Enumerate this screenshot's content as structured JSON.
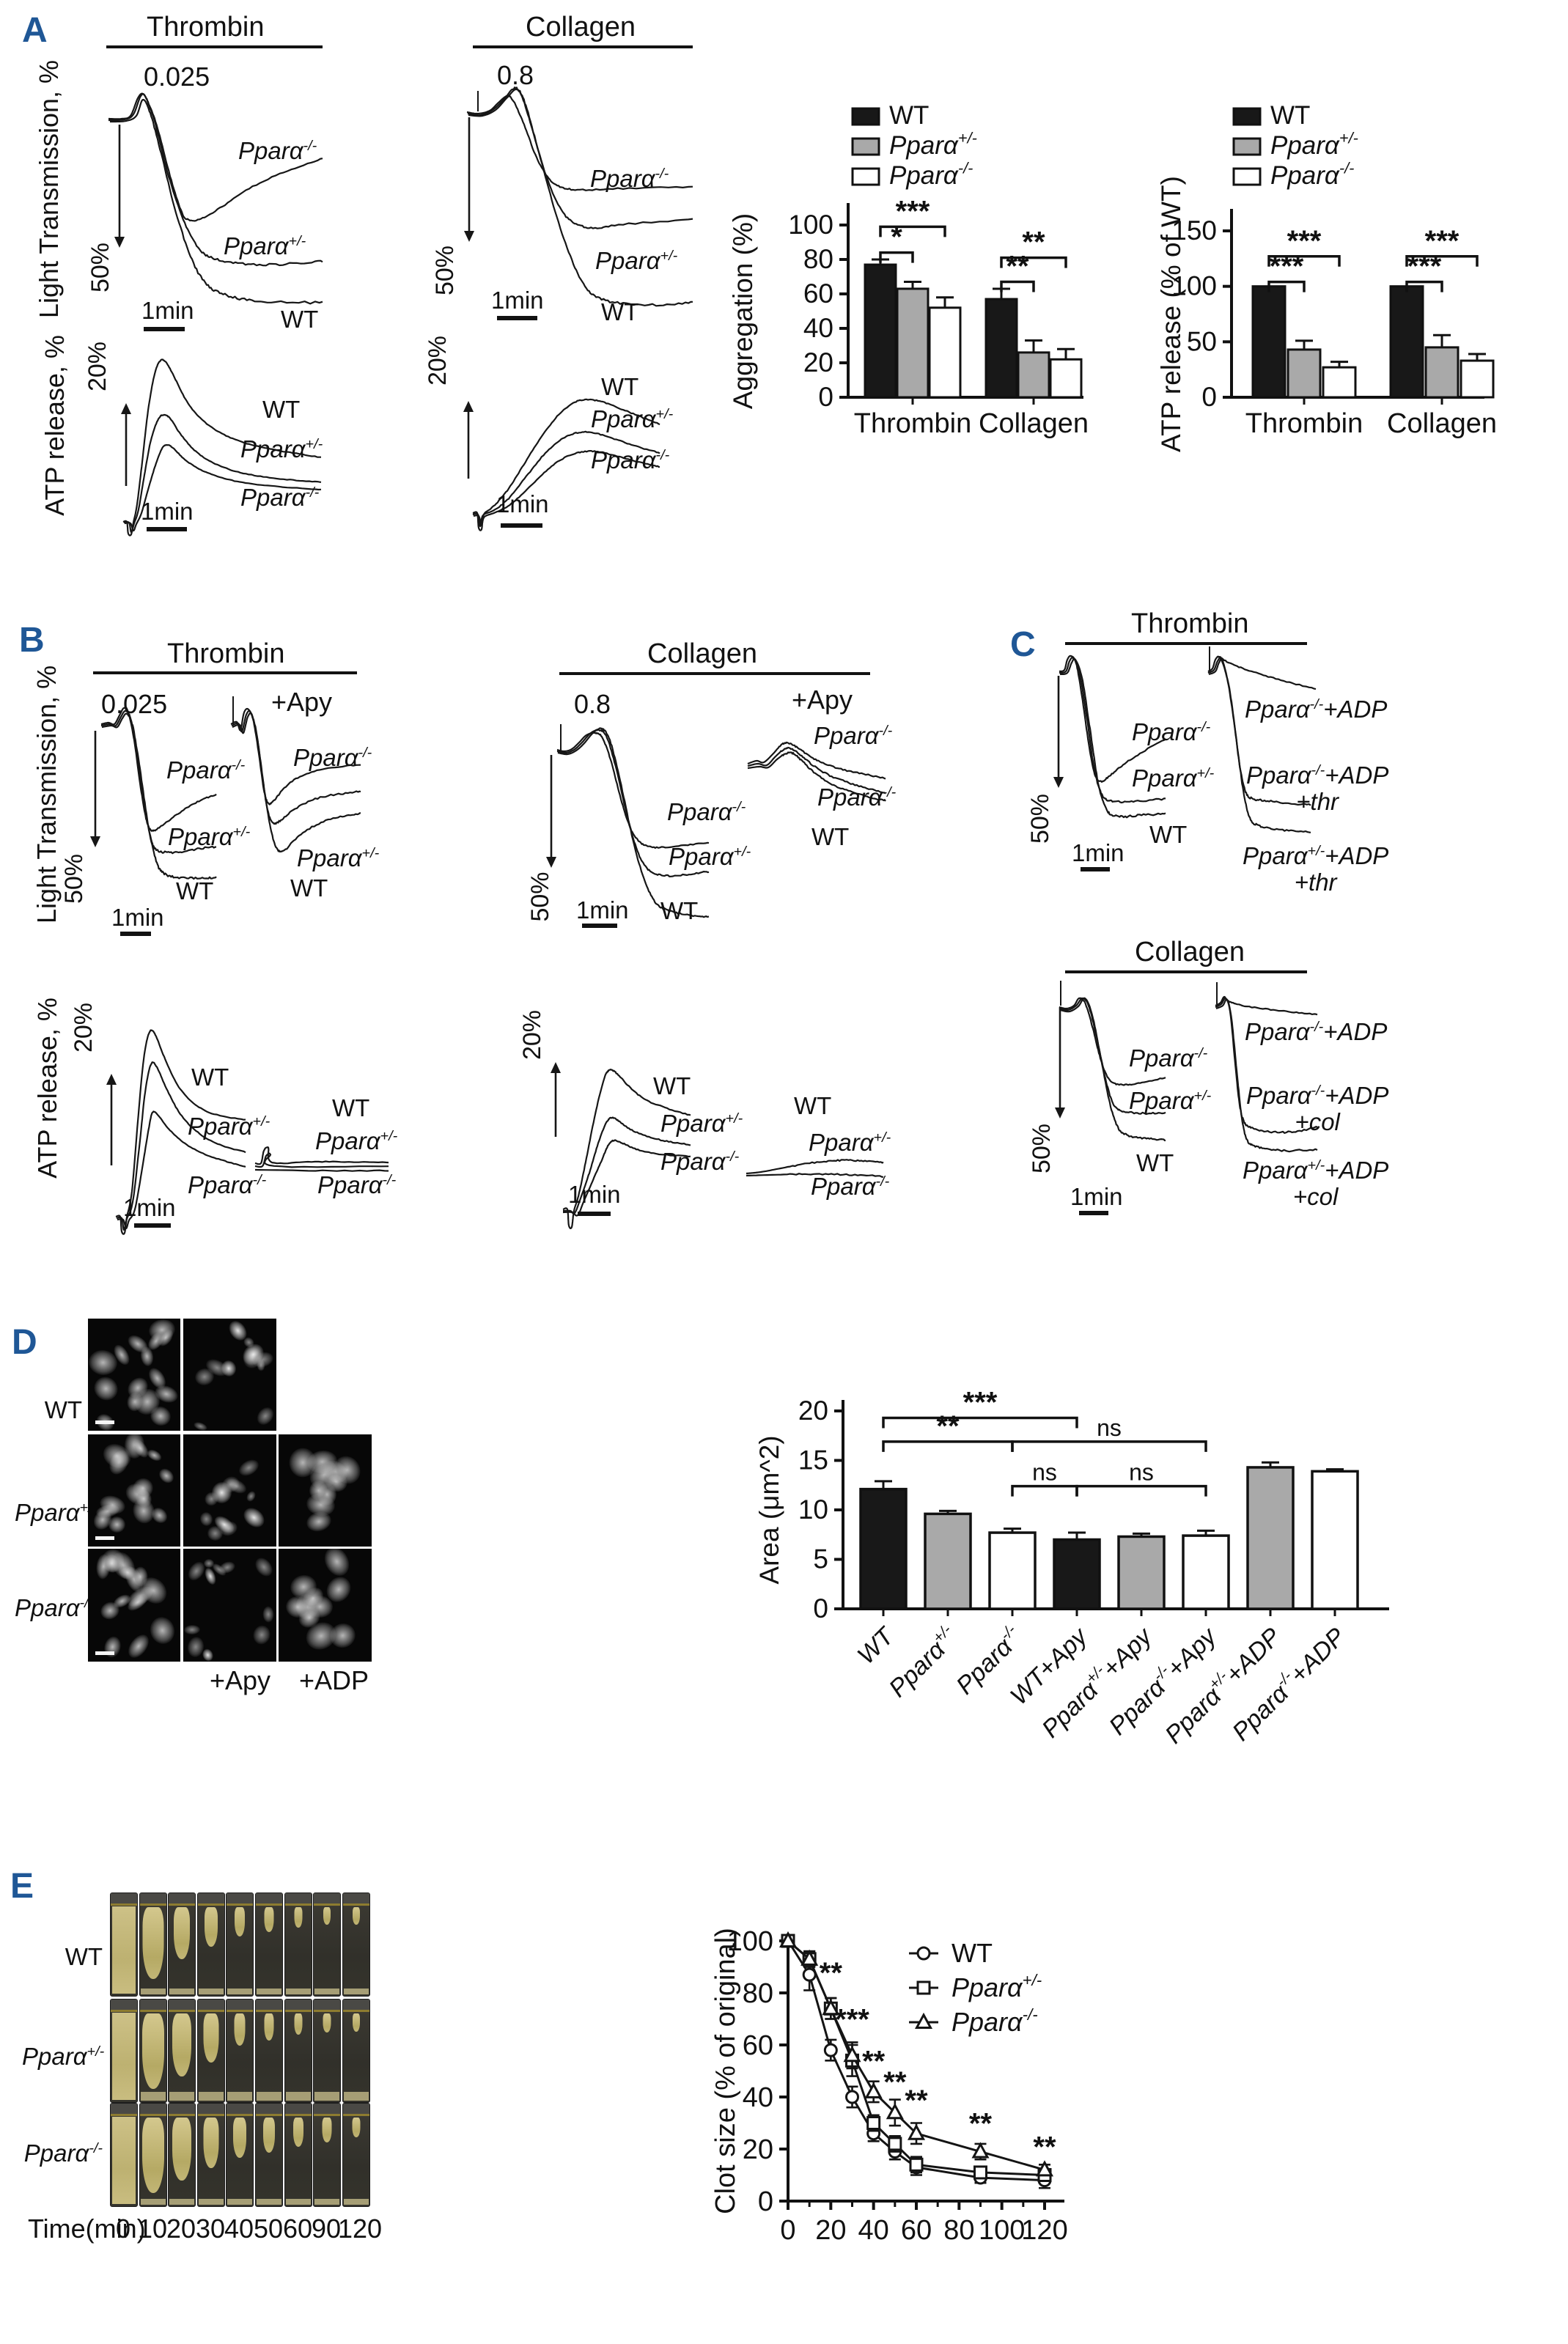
{
  "figure": {
    "panel_letter_color": "#1f5796"
  },
  "panelA": {
    "letter": "A",
    "agg_thrombin": {
      "title": "Thrombin",
      "dose": "0.025",
      "y_axis": "Light Transmission, %",
      "scale": "50%",
      "time_scale": "1min",
      "trace_labels": [
        "Pparα^{-/-}",
        "Pparα^{+/-}",
        "WT"
      ]
    },
    "agg_collagen": {
      "title": "Collagen",
      "dose": "0.8",
      "scale": "50%",
      "time_scale": "1min",
      "trace_labels": [
        "Pparα^{-/-}",
        "Pparα^{+/-}",
        "WT"
      ]
    },
    "atp_thrombin": {
      "y_axis": "ATP release, %",
      "scale": "20%",
      "time_scale": "1min",
      "trace_labels": [
        "WT",
        "Pparα^{+/-}",
        "Pparα^{-/-}"
      ]
    },
    "atp_collagen": {
      "scale": "20%",
      "time_scale": "1min",
      "trace_labels": [
        "WT",
        "Pparα^{+/-}",
        "Pparα^{-/-}"
      ]
    }
  },
  "panelB": {
    "letter": "B",
    "y_axis_top": "Light Transmission, %",
    "y_axis_bottom": "ATP release, %",
    "thrombin": {
      "title": "Thrombin",
      "dose": "0.025",
      "treatment": "+Apy",
      "scale": "50%",
      "time_scale": "1min",
      "left_labels": [
        "Pparα^{-/-}",
        "Pparα^{+/-}",
        "WT"
      ],
      "right_labels": [
        "Pparα^{-/-}",
        "Pparα^{+/-}",
        "WT"
      ]
    },
    "collagen": {
      "title": "Collagen",
      "dose": "0.8",
      "treatment": "+Apy",
      "scale": "50%",
      "time_scale": "1min",
      "left_labels": [
        "Pparα^{-/-}",
        "Pparα^{+/-}",
        "WT"
      ],
      "right_labels": [
        "Pparα^{-/-}",
        "Pparα^{-/-}",
        "WT"
      ]
    },
    "atp_thrombin": {
      "scale": "20%",
      "time_scale": "1min",
      "left_labels": [
        "WT",
        "Pparα^{+/-}",
        "Pparα^{-/-}"
      ],
      "right_labels": [
        "WT",
        "Pparα^{+/-}",
        "Pparα^{-/-}"
      ]
    },
    "atp_collagen": {
      "scale": "20%",
      "time_scale": "1min",
      "left_labels": [
        "WT",
        "Pparα^{+/-}",
        "Pparα^{-/-}"
      ],
      "right_labels": [
        "WT",
        "Pparα^{+/-}",
        "Pparα^{-/-}"
      ]
    }
  },
  "panelC": {
    "letter": "C",
    "thrombin": {
      "title": "Thrombin",
      "scale": "50%",
      "time_scale": "1min",
      "left_labels": [
        "Pparα^{-/-}",
        "Pparα^{+/-}",
        "WT"
      ],
      "right_labels": [
        "Pparα^{-/-}+ADP",
        "Pparα^{-/-}+ADP\n+thr",
        "Pparα^{+/-}+ADP\n+thr"
      ]
    },
    "collagen": {
      "title": "Collagen",
      "scale": "50%",
      "time_scale": "1min",
      "left_labels": [
        "Pparα^{-/-}",
        "Pparα^{+/-}",
        "WT"
      ],
      "right_labels": [
        "Pparα^{-/-}+ADP",
        "Pparα^{-/-}+ADP\n+col",
        "Pparα^{+/-}+ADP\n+col"
      ]
    }
  },
  "panelD": {
    "letter": "D",
    "row_labels": [
      "WT",
      "Pparα^{+/-}",
      "Pparα^{-/-}"
    ],
    "col_labels": [
      "+Apy",
      "+ADP"
    ]
  },
  "panelE": {
    "letter": "E",
    "row_labels": [
      "WT",
      "Pparα^{+/-}",
      "Pparα^{-/-}"
    ],
    "time_label": "Time(min)",
    "time_values": [
      "0",
      "10",
      "20",
      "30",
      "40",
      "50",
      "60",
      "90",
      "120"
    ]
  },
  "chart_data": [
    {
      "id": "aggregation",
      "type": "bar",
      "title": "",
      "ylabel": "Aggregation (%)",
      "ylim": [
        0,
        100
      ],
      "yticks": [
        0,
        20,
        40,
        60,
        80,
        100
      ],
      "categories": [
        "Thrombin",
        "Collagen"
      ],
      "legend_position": "top-left",
      "series": [
        {
          "name": "WT",
          "fill": "#181818",
          "values": [
            77,
            57
          ],
          "errors": [
            3,
            6
          ]
        },
        {
          "name": "Pparα^{+/-}",
          "fill": "#a9a9a9",
          "values": [
            63,
            26
          ],
          "errors": [
            4,
            7
          ]
        },
        {
          "name": "Pparα^{-/-}",
          "fill": "#ffffff",
          "values": [
            52,
            22
          ],
          "errors": [
            6,
            6
          ]
        }
      ],
      "significance": [
        {
          "cat": 0,
          "a": 0,
          "b": 1,
          "label": "*",
          "y": 84
        },
        {
          "cat": 0,
          "a": 0,
          "b": 2,
          "label": "***",
          "y": 99
        },
        {
          "cat": 1,
          "a": 0,
          "b": 1,
          "label": "**",
          "y": 67
        },
        {
          "cat": 1,
          "a": 0,
          "b": 2,
          "label": "**",
          "y": 81
        }
      ]
    },
    {
      "id": "atp_release",
      "type": "bar",
      "title": "",
      "ylabel": "ATP release (% of WT)",
      "ylim": [
        0,
        150
      ],
      "yticks": [
        0,
        50,
        100,
        150
      ],
      "categories": [
        "Thrombin",
        "Collagen"
      ],
      "legend_position": "top-left",
      "series": [
        {
          "name": "WT",
          "fill": "#181818",
          "values": [
            100,
            100
          ],
          "errors": [
            0,
            0
          ]
        },
        {
          "name": "Pparα^{+/-}",
          "fill": "#a9a9a9",
          "values": [
            43,
            45
          ],
          "errors": [
            8,
            11
          ]
        },
        {
          "name": "Pparα^{-/-}",
          "fill": "#ffffff",
          "values": [
            27,
            33
          ],
          "errors": [
            5,
            6
          ]
        }
      ],
      "significance": [
        {
          "cat": 0,
          "a": 0,
          "b": 1,
          "label": "***",
          "y": 104
        },
        {
          "cat": 0,
          "a": 0,
          "b": 2,
          "label": "***",
          "y": 127
        },
        {
          "cat": 1,
          "a": 0,
          "b": 1,
          "label": "***",
          "y": 104
        },
        {
          "cat": 1,
          "a": 0,
          "b": 2,
          "label": "***",
          "y": 127
        }
      ]
    },
    {
      "id": "spread_area",
      "type": "bar",
      "title": "",
      "ylabel": "Area (μm^2)",
      "ylim": [
        0,
        20
      ],
      "yticks": [
        0,
        5,
        10,
        15,
        20
      ],
      "categories": [
        "WT",
        "Pparα^{+/-}",
        "Pparα^{-/-}",
        "WT+Apy",
        "Pparα^{+/-}+Apy",
        "Pparα^{-/-}+Apy",
        "Pparα^{+/-}+ADP",
        "Pparα^{-/-}+ADP"
      ],
      "values": [
        12.1,
        9.6,
        7.7,
        7.0,
        7.3,
        7.4,
        14.3,
        13.9
      ],
      "errors": [
        0.8,
        0.3,
        0.4,
        0.7,
        0.3,
        0.5,
        0.5,
        0.2
      ],
      "colors": [
        "#181818",
        "#a9a9a9",
        "#ffffff",
        "#181818",
        "#a9a9a9",
        "#ffffff",
        "#a9a9a9",
        "#ffffff"
      ],
      "significance": [
        {
          "a": 0,
          "b": 3,
          "label": "***",
          "y": 19.3
        },
        {
          "a": 0,
          "b": 2,
          "label": "**",
          "y": 16.9
        },
        {
          "a": 2,
          "b": 5,
          "label": "ns",
          "y": 16.9
        },
        {
          "a": 2,
          "b": 3,
          "label": "ns",
          "y": 12.4
        },
        {
          "a": 3,
          "b": 5,
          "label": "ns",
          "y": 12.4
        }
      ]
    },
    {
      "id": "clot_retraction",
      "type": "line",
      "title": "",
      "ylabel": "Clot size (% of original)",
      "xlabel": "",
      "xlim": [
        0,
        130
      ],
      "ylim": [
        0,
        100
      ],
      "xticks": [
        0,
        20,
        40,
        60,
        80,
        100,
        120
      ],
      "xminor": [
        10,
        30,
        50,
        70,
        90,
        110
      ],
      "yticks": [
        0,
        20,
        40,
        60,
        80,
        100
      ],
      "x": [
        0,
        10,
        20,
        30,
        40,
        50,
        60,
        90,
        120
      ],
      "series": [
        {
          "name": "WT",
          "marker": "circle",
          "values": [
            100,
            87,
            58,
            40,
            26,
            19,
            13,
            9,
            8
          ],
          "errors": [
            2,
            6,
            4,
            4,
            3,
            3,
            3,
            2,
            3
          ]
        },
        {
          "name": "Pparα^{+/-}",
          "marker": "square",
          "values": [
            100,
            93,
            74,
            54,
            30,
            22,
            14,
            11,
            10
          ],
          "errors": [
            1,
            3,
            4,
            6,
            3,
            3,
            3,
            2,
            2
          ]
        },
        {
          "name": "Pparα^{-/-}",
          "marker": "triangle",
          "values": [
            100,
            93,
            74,
            56,
            42,
            34,
            26,
            19,
            12
          ],
          "errors": [
            1,
            3,
            4,
            5,
            4,
            5,
            4,
            3,
            2
          ]
        }
      ],
      "annotations": [
        {
          "x": 20,
          "y": 84,
          "label": "**"
        },
        {
          "x": 30,
          "y": 66,
          "label": "***"
        },
        {
          "x": 40,
          "y": 50,
          "label": "**"
        },
        {
          "x": 50,
          "y": 42,
          "label": "**"
        },
        {
          "x": 60,
          "y": 35,
          "label": "**"
        },
        {
          "x": 90,
          "y": 26,
          "label": "**"
        },
        {
          "x": 120,
          "y": 17,
          "label": "**"
        }
      ],
      "legend": [
        "WT",
        "Pparα^{+/-}",
        "Pparα^{-/-}"
      ]
    }
  ]
}
